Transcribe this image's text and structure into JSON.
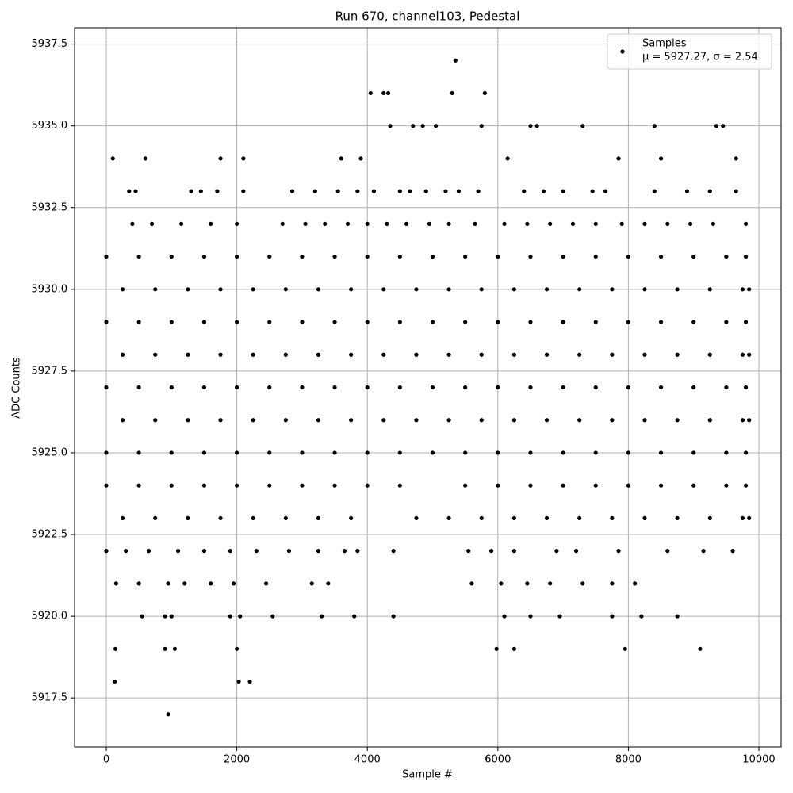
{
  "chart_data": {
    "type": "scatter",
    "title": "Run 670, channel103, Pedestal",
    "x_label": "Sample #",
    "y_label": "ADC Counts",
    "xlim": [
      -486,
      10340
    ],
    "ylim": [
      5916,
      5938
    ],
    "xticks": [
      0,
      2000,
      4000,
      6000,
      8000,
      10000
    ],
    "yticks": [
      5917.5,
      {
        "value": 5920,
        "label": "5920.0"
      },
      5922.5,
      {
        "value": 5925,
        "label": "5925.0"
      },
      5927.5,
      {
        "value": 5930,
        "label": "5930.0"
      },
      5932.5,
      {
        "value": 5935,
        "label": "5935.0"
      },
      5937.5
    ],
    "grid": true,
    "legend": "upper right",
    "legend_stats": "μ = 5927.27, σ = 2.54",
    "x": [
      100,
      600,
      1750,
      2100,
      3600,
      3900,
      4050,
      4250,
      4320,
      4350,
      4700,
      4850,
      5050,
      5300,
      5350,
      5800,
      5750,
      6500,
      6600,
      7300,
      8400,
      9350,
      9450,
      9650,
      6150,
      7850,
      8500,
      130,
      140,
      950,
      900,
      1050,
      2030,
      2200,
      2000,
      5980,
      6250,
      7950,
      9100,
      550,
      900,
      1000,
      1900,
      2050,
      2550,
      3300,
      3800,
      4400,
      6100,
      6500,
      6950,
      7750,
      8200,
      8750,
      150,
      500,
      950,
      1200,
      1600,
      1950,
      2450,
      3150,
      3400,
      5600,
      6050,
      6450,
      6800,
      7300,
      7750,
      8100,
      0,
      300,
      650,
      1100,
      1500,
      1900,
      2300,
      2800,
      3250,
      3650,
      3850,
      4400,
      5550,
      5900,
      6250,
      6900,
      7200,
      7850,
      8600,
      9150,
      9600,
      350,
      450,
      1300,
      1450,
      1700,
      2100,
      2850,
      3200,
      3550,
      3850,
      4100,
      4500,
      4650,
      4900,
      5200,
      5400,
      5700,
      6400,
      6700,
      7000,
      7450,
      7650,
      8400,
      8900,
      9250,
      9650,
      400,
      700,
      1150,
      1600,
      2000,
      2700,
      3050,
      3350,
      3700,
      4000,
      4300,
      4600,
      4950,
      5250,
      5650,
      6100,
      6450,
      6800,
      7150,
      7500,
      7900,
      8250,
      8600,
      8950,
      9300,
      9800,
      0,
      500,
      1000,
      1500,
      2000,
      2500,
      3000,
      3500,
      4000,
      4500,
      5000,
      5500,
      6000,
      6500,
      7000,
      7500,
      8000,
      8500,
      9000,
      9500,
      9800,
      250,
      750,
      1250,
      1750,
      2250,
      2750,
      3250,
      3750,
      4250,
      4750,
      5250,
      5750,
      6250,
      6750,
      7250,
      7750,
      8250,
      8750,
      9250,
      9750,
      9850,
      0,
      500,
      1000,
      1500,
      2000,
      2500,
      3000,
      3500,
      4000,
      4500,
      5000,
      5500,
      6000,
      6500,
      7000,
      7500,
      8000,
      8500,
      9000,
      9500,
      9800,
      250,
      750,
      1250,
      1750,
      2250,
      2750,
      3250,
      3750,
      4250,
      4750,
      5250,
      5750,
      6250,
      6750,
      7250,
      7750,
      8250,
      8750,
      9250,
      9750,
      9850,
      0,
      500,
      1000,
      1500,
      2000,
      2500,
      3000,
      3500,
      4000,
      4500,
      5000,
      5500,
      6000,
      6500,
      7000,
      7500,
      8000,
      8500,
      9000,
      9500,
      9800,
      250,
      750,
      1250,
      1750,
      2250,
      2750,
      3250,
      3750,
      4250,
      4750,
      5250,
      5750,
      6250,
      6750,
      7250,
      7750,
      8250,
      8750,
      9250,
      9750,
      9850,
      0,
      500,
      1000,
      1500,
      2000,
      2500,
      3000,
      3500,
      4000,
      4500,
      5000,
      5500,
      6000,
      6500,
      7000,
      7500,
      8000,
      8500,
      9000,
      9500,
      9800,
      0,
      500,
      1000,
      1500,
      2000,
      2500,
      3000,
      3500,
      4000,
      4500,
      5500,
      6000,
      6500,
      7000,
      7500,
      8000,
      8500,
      9000,
      9500,
      9800,
      250,
      750,
      1250,
      1750,
      2250,
      2750,
      3250,
      3750,
      4750,
      5250,
      5750,
      6250,
      6750,
      7250,
      7750,
      8250,
      8750,
      9250,
      9750,
      9850
    ],
    "series": [
      {
        "name": "Samples",
        "color": "#000000",
        "values": [
          5934,
          5934,
          5934,
          5934,
          5934,
          5934,
          5936,
          5936,
          5936,
          5935,
          5935,
          5935,
          5935,
          5936,
          5937,
          5936,
          5935,
          5935,
          5935,
          5935,
          5935,
          5935,
          5935,
          5934,
          5934,
          5934,
          5934,
          5918,
          5919,
          5917,
          5919,
          5919,
          5918,
          5918,
          5919,
          5919,
          5919,
          5919,
          5919,
          5920,
          5920,
          5920,
          5920,
          5920,
          5920,
          5920,
          5920,
          5920,
          5920,
          5920,
          5920,
          5920,
          5920,
          5920,
          5921,
          5921,
          5921,
          5921,
          5921,
          5921,
          5921,
          5921,
          5921,
          5921,
          5921,
          5921,
          5921,
          5921,
          5921,
          5921,
          5922,
          5922,
          5922,
          5922,
          5922,
          5922,
          5922,
          5922,
          5922,
          5922,
          5922,
          5922,
          5922,
          5922,
          5922,
          5922,
          5922,
          5922,
          5922,
          5922,
          5922,
          5933,
          5933,
          5933,
          5933,
          5933,
          5933,
          5933,
          5933,
          5933,
          5933,
          5933,
          5933,
          5933,
          5933,
          5933,
          5933,
          5933,
          5933,
          5933,
          5933,
          5933,
          5933,
          5933,
          5933,
          5933,
          5933,
          5932,
          5932,
          5932,
          5932,
          5932,
          5932,
          5932,
          5932,
          5932,
          5932,
          5932,
          5932,
          5932,
          5932,
          5932,
          5932,
          5932,
          5932,
          5932,
          5932,
          5932,
          5932,
          5932,
          5932,
          5932,
          5932,
          5931,
          5931,
          5931,
          5931,
          5931,
          5931,
          5931,
          5931,
          5931,
          5931,
          5931,
          5931,
          5931,
          5931,
          5931,
          5931,
          5931,
          5931,
          5931,
          5931,
          5931,
          5930,
          5930,
          5930,
          5930,
          5930,
          5930,
          5930,
          5930,
          5930,
          5930,
          5930,
          5930,
          5930,
          5930,
          5930,
          5930,
          5930,
          5930,
          5930,
          5930,
          5930,
          5929,
          5929,
          5929,
          5929,
          5929,
          5929,
          5929,
          5929,
          5929,
          5929,
          5929,
          5929,
          5929,
          5929,
          5929,
          5929,
          5929,
          5929,
          5929,
          5929,
          5929,
          5928,
          5928,
          5928,
          5928,
          5928,
          5928,
          5928,
          5928,
          5928,
          5928,
          5928,
          5928,
          5928,
          5928,
          5928,
          5928,
          5928,
          5928,
          5928,
          5928,
          5928,
          5927,
          5927,
          5927,
          5927,
          5927,
          5927,
          5927,
          5927,
          5927,
          5927,
          5927,
          5927,
          5927,
          5927,
          5927,
          5927,
          5927,
          5927,
          5927,
          5927,
          5927,
          5926,
          5926,
          5926,
          5926,
          5926,
          5926,
          5926,
          5926,
          5926,
          5926,
          5926,
          5926,
          5926,
          5926,
          5926,
          5926,
          5926,
          5926,
          5926,
          5926,
          5926,
          5925,
          5925,
          5925,
          5925,
          5925,
          5925,
          5925,
          5925,
          5925,
          5925,
          5925,
          5925,
          5925,
          5925,
          5925,
          5925,
          5925,
          5925,
          5925,
          5925,
          5925,
          5924,
          5924,
          5924,
          5924,
          5924,
          5924,
          5924,
          5924,
          5924,
          5924,
          5924,
          5924,
          5924,
          5924,
          5924,
          5924,
          5924,
          5924,
          5924,
          5924,
          5923,
          5923,
          5923,
          5923,
          5923,
          5923,
          5923,
          5923,
          5923,
          5923,
          5923,
          5923,
          5923,
          5923,
          5923,
          5923,
          5923,
          5923,
          5923,
          5923
        ]
      }
    ]
  }
}
